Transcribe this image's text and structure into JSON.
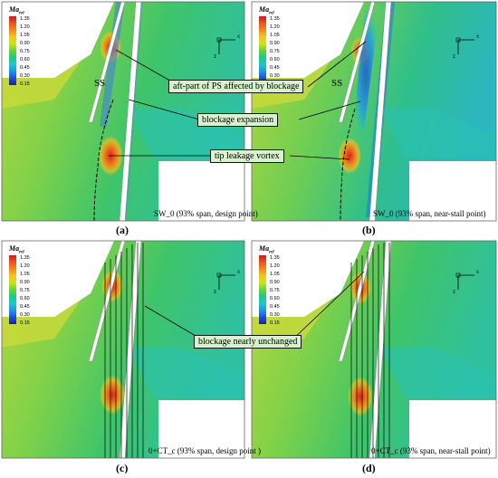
{
  "legend": {
    "title": "Ma",
    "title_sub": "rel",
    "ticks": [
      "1.35",
      "1.20",
      "1.05",
      "0.90",
      "0.75",
      "0.60",
      "0.45",
      "0.30",
      "0.15"
    ]
  },
  "axes": {
    "x": "x",
    "z": "z"
  },
  "panels": [
    {
      "label": "(a)",
      "note": "SW_0 (93% span, design point)"
    },
    {
      "label": "(b)",
      "note": "SW_0 (93% span, near-stall point)"
    },
    {
      "label": "(c)",
      "note": "0+CT_c (93% span, design point )"
    },
    {
      "label": "(d)",
      "note": "0+CT_c (93% span, near-stall point)"
    }
  ],
  "annotations": {
    "ss": "SS",
    "aft_part": "aft-part of PS affected by blockage",
    "blockage_expansion": "blockage expansion",
    "tip_leakage_vortex": "tip leakage vortex",
    "blockage_unchanged": "blockage nearly unchanged"
  },
  "colors": {
    "mach_high": "#d7261e",
    "mach_mid": "#35c23c",
    "mach_low": "#1e50d2",
    "callout_bg": "#d7f2cd"
  }
}
